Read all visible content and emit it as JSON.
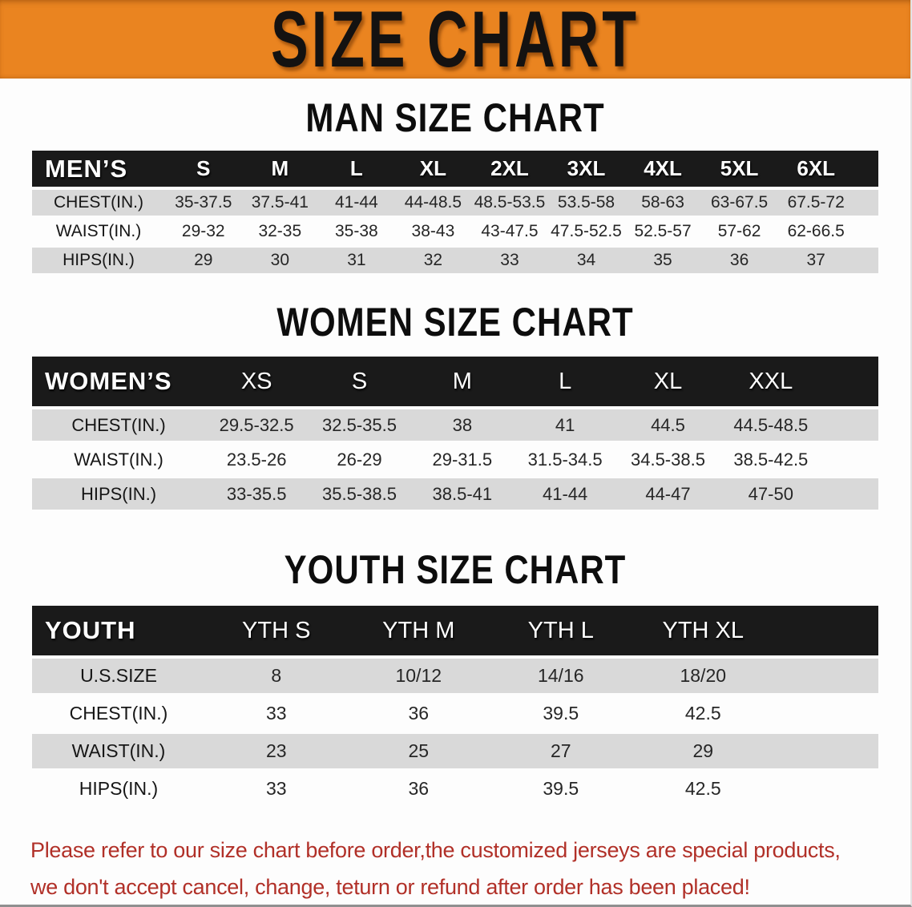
{
  "banner": {
    "title": "SIZE CHART"
  },
  "sections": [
    {
      "id": "men",
      "title": "MAN SIZE CHART",
      "header_label": "MEN’S",
      "columns": [
        "S",
        "M",
        "L",
        "XL",
        "2XL",
        "3XL",
        "4XL",
        "5XL",
        "6XL"
      ],
      "rows": [
        {
          "label": "CHEST(IN.)",
          "values": [
            "35-37.5",
            "37.5-41",
            "41-44",
            "44-48.5",
            "48.5-53.5",
            "53.5-58",
            "58-63",
            "63-67.5",
            "67.5-72"
          ]
        },
        {
          "label": "WAIST(IN.)",
          "values": [
            "29-32",
            "32-35",
            "35-38",
            "38-43",
            "43-47.5",
            "47.5-52.5",
            "52.5-57",
            "57-62",
            "62-66.5"
          ]
        },
        {
          "label": "HIPS(IN.)",
          "values": [
            "29",
            "30",
            "31",
            "32",
            "33",
            "34",
            "35",
            "36",
            "37"
          ]
        }
      ]
    },
    {
      "id": "women",
      "title": "WOMEN SIZE CHART",
      "header_label": "WOMEN’S",
      "columns": [
        "XS",
        "S",
        "M",
        "L",
        "XL",
        "XXL"
      ],
      "rows": [
        {
          "label": "CHEST(IN.)",
          "values": [
            "29.5-32.5",
            "32.5-35.5",
            "38",
            "41",
            "44.5",
            "44.5-48.5"
          ]
        },
        {
          "label": "WAIST(IN.)",
          "values": [
            "23.5-26",
            "26-29",
            "29-31.5",
            "31.5-34.5",
            "34.5-38.5",
            "38.5-42.5"
          ]
        },
        {
          "label": "HIPS(IN.)",
          "values": [
            "33-35.5",
            "35.5-38.5",
            "38.5-41",
            "41-44",
            "44-47",
            "47-50"
          ]
        }
      ]
    },
    {
      "id": "youth",
      "title": "YOUTH SIZE CHART",
      "header_label": "YOUTH",
      "columns": [
        "YTH S",
        "YTH M",
        "YTH L",
        "YTH XL"
      ],
      "rows": [
        {
          "label": "U.S.SIZE",
          "values": [
            "8",
            "10/12",
            "14/16",
            "18/20"
          ]
        },
        {
          "label": "CHEST(IN.)",
          "values": [
            "33",
            "36",
            "39.5",
            "42.5"
          ]
        },
        {
          "label": "WAIST(IN.)",
          "values": [
            "23",
            "25",
            "27",
            "29"
          ]
        },
        {
          "label": "HIPS(IN.)",
          "values": [
            "33",
            "36",
            "39.5",
            "42.5"
          ]
        }
      ]
    }
  ],
  "disclaimer": {
    "line1": "Please refer to our size chart before order,the customized jerseys are special products,",
    "line2": "we don't accept cancel, change, teturn or refund after order has been placed!"
  },
  "colors": {
    "banner_bg": "#EA8420",
    "header_bar_bg": "#1A1A1A",
    "row_alt_bg": "#D9D9D9",
    "row_bg": "#FDFDFD",
    "title_color": "#0D0D0D",
    "disclaimer_color": "#B13028",
    "page_bg": "#FDFDFD"
  }
}
